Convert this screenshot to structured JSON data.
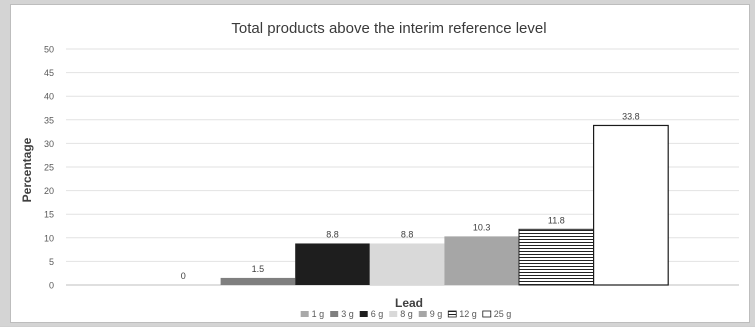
{
  "chart_data": {
    "type": "bar",
    "title": "Total products above the interim reference level",
    "xlabel": "Lead",
    "ylabel": "Percentage",
    "ylim": [
      0,
      50
    ],
    "yticks": [
      "0",
      "5",
      "10",
      "15",
      "20",
      "25",
      "30",
      "35",
      "40",
      "45",
      "50"
    ],
    "grid": true,
    "legend_position": "bottom",
    "series": [
      {
        "name": "1 g",
        "value": 0,
        "label": "0",
        "color": "#a9a9a9",
        "pattern": "solid"
      },
      {
        "name": "3 g",
        "value": 1.5,
        "label": "1.5",
        "color": "#7f7f7f",
        "pattern": "solid"
      },
      {
        "name": "6 g",
        "value": 8.8,
        "label": "8.8",
        "color": "#1e1e1e",
        "pattern": "solid"
      },
      {
        "name": "8 g",
        "value": 8.8,
        "label": "8.8",
        "color": "#d9d9d9",
        "pattern": "solid"
      },
      {
        "name": "9 g",
        "value": 10.3,
        "label": "10.3",
        "color": "#a6a6a6",
        "pattern": "solid"
      },
      {
        "name": "12 g",
        "value": 11.8,
        "label": "11.8",
        "color": "#ffffff",
        "pattern": "horizontal-lines"
      },
      {
        "name": "25 g",
        "value": 33.8,
        "label": "33.8",
        "color": "#ffffff",
        "pattern": "outline"
      }
    ]
  }
}
